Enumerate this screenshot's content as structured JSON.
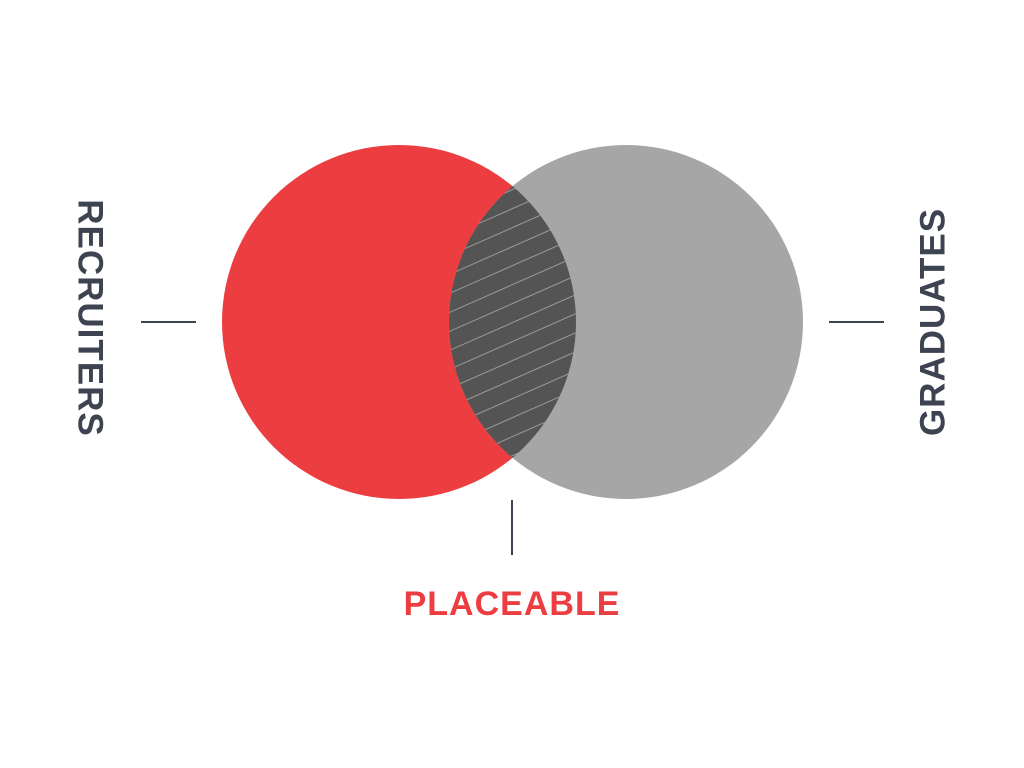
{
  "sets": {
    "left": {
      "label": "RECRUITERS",
      "color": "#ec3d41"
    },
    "right": {
      "label": "GRADUATES",
      "color": "#a6a6a6"
    },
    "intersection": {
      "label": "PLACEABLE",
      "color": "#545454",
      "pattern": "diagonal-hatch"
    }
  },
  "colors": {
    "text": "#3d4350",
    "connector": "#3d4350",
    "accent": "#ec3d41",
    "background": "#ffffff",
    "hatch": "#9a9a9a"
  }
}
